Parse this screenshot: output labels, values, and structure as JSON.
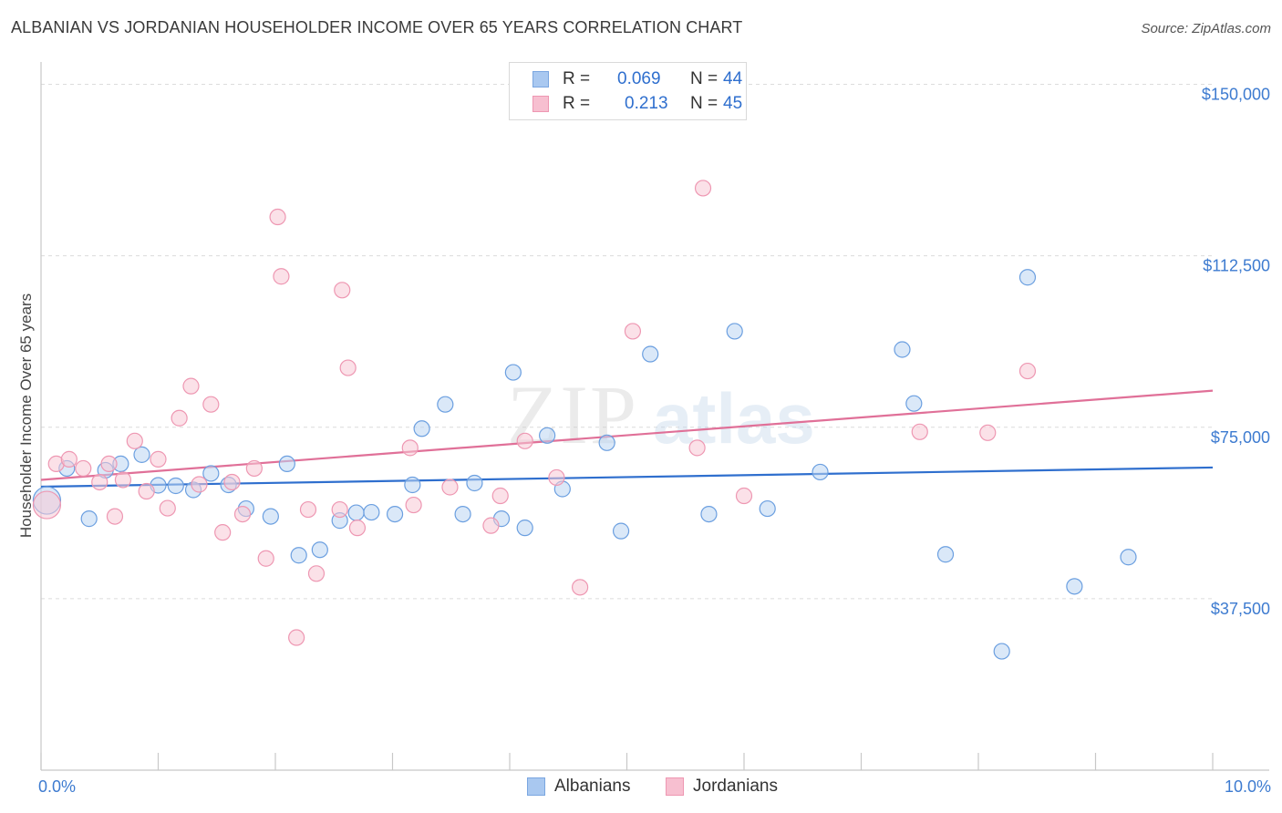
{
  "title": "ALBANIAN VS JORDANIAN HOUSEHOLDER INCOME OVER 65 YEARS CORRELATION CHART",
  "source": "Source: ZipAtlas.com",
  "watermark": {
    "zip": "ZIP",
    "atlas": "atlas"
  },
  "legend": {
    "rows": [
      {
        "r_label": "R =",
        "r_value": "0.069",
        "n_label": "N =",
        "n_value": "44",
        "color": "#a9c8f0",
        "border": "#7aa6e0"
      },
      {
        "r_label": "R =",
        "r_value": "0.213",
        "n_label": "N =",
        "n_value": "45",
        "color": "#f7bfd0",
        "border": "#ee97b2"
      }
    ]
  },
  "bottom_legend": [
    "Albanians",
    "Jordanians"
  ],
  "chart_data": {
    "type": "scatter",
    "title": "ALBANIAN VS JORDANIAN HOUSEHOLDER INCOME OVER 65 YEARS CORRELATION CHART",
    "xlabel": "",
    "ylabel": "Householder Income Over 65 years",
    "xlim": [
      0,
      10
    ],
    "ylim": [
      0,
      153500
    ],
    "x_tick_labels": [
      "0.0%",
      "10.0%"
    ],
    "y_ticks": [
      37500,
      75000,
      112500,
      150000
    ],
    "y_tick_labels": [
      "$37,500",
      "$75,000",
      "$112,500",
      "$150,000"
    ],
    "grid": true,
    "series": [
      {
        "name": "Albanians",
        "color": "#6b9fe0",
        "fill": "#bcd5f3",
        "trend": {
          "x": [
            0,
            10
          ],
          "y": [
            62000,
            66200
          ],
          "color": "#2f6fce"
        },
        "points": [
          [
            0.05,
            59000,
            3
          ],
          [
            0.22,
            66000,
            1
          ],
          [
            0.41,
            55000,
            1
          ],
          [
            0.55,
            65600,
            1
          ],
          [
            0.68,
            67000,
            1
          ],
          [
            0.86,
            69000,
            1
          ],
          [
            1.0,
            62300,
            1
          ],
          [
            1.15,
            62200,
            1
          ],
          [
            1.3,
            61300,
            1
          ],
          [
            1.45,
            64900,
            1
          ],
          [
            1.6,
            62400,
            1
          ],
          [
            1.75,
            57200,
            1
          ],
          [
            1.96,
            55500,
            1
          ],
          [
            2.1,
            67000,
            1
          ],
          [
            2.2,
            47000,
            1
          ],
          [
            2.38,
            48200,
            1
          ],
          [
            2.55,
            54600,
            1
          ],
          [
            2.69,
            56300,
            1
          ],
          [
            2.82,
            56400,
            1
          ],
          [
            3.02,
            56000,
            1
          ],
          [
            3.17,
            62400,
            1
          ],
          [
            3.25,
            74700,
            1
          ],
          [
            3.45,
            80000,
            1
          ],
          [
            3.6,
            56000,
            1
          ],
          [
            3.7,
            62800,
            1
          ],
          [
            3.93,
            55000,
            1
          ],
          [
            4.03,
            87000,
            1
          ],
          [
            4.13,
            53000,
            1
          ],
          [
            4.32,
            73200,
            1
          ],
          [
            4.45,
            61500,
            1
          ],
          [
            4.83,
            71600,
            1
          ],
          [
            4.95,
            52300,
            1
          ],
          [
            5.2,
            91000,
            1
          ],
          [
            5.7,
            56000,
            1
          ],
          [
            5.92,
            96000,
            1
          ],
          [
            6.2,
            57200,
            1
          ],
          [
            6.65,
            65200,
            1
          ],
          [
            7.35,
            92000,
            1
          ],
          [
            7.45,
            80200,
            1
          ],
          [
            7.72,
            47200,
            1
          ],
          [
            8.2,
            26000,
            1
          ],
          [
            8.42,
            107800,
            1
          ],
          [
            8.82,
            40200,
            1
          ],
          [
            9.28,
            46600,
            1
          ]
        ]
      },
      {
        "name": "Jordanians",
        "color": "#ee97b2",
        "fill": "#f8c8d6",
        "trend": {
          "x": [
            0,
            10
          ],
          "y": [
            63500,
            83000
          ],
          "color": "#e07098"
        },
        "points": [
          [
            0.05,
            58000,
            3
          ],
          [
            0.13,
            67000,
            1
          ],
          [
            0.24,
            68000,
            1
          ],
          [
            0.36,
            66000,
            1
          ],
          [
            0.5,
            63000,
            1
          ],
          [
            0.58,
            67000,
            1
          ],
          [
            0.63,
            55500,
            1
          ],
          [
            0.7,
            63500,
            1
          ],
          [
            0.8,
            72000,
            1
          ],
          [
            0.9,
            61000,
            1
          ],
          [
            1.0,
            68000,
            1
          ],
          [
            1.08,
            57300,
            1
          ],
          [
            1.18,
            77000,
            1
          ],
          [
            1.28,
            84000,
            1
          ],
          [
            1.35,
            62500,
            1
          ],
          [
            1.45,
            80000,
            1
          ],
          [
            1.55,
            52000,
            1
          ],
          [
            1.63,
            63000,
            1
          ],
          [
            1.72,
            56000,
            1
          ],
          [
            1.82,
            66000,
            1
          ],
          [
            1.92,
            46300,
            1
          ],
          [
            2.02,
            121000,
            1
          ],
          [
            2.05,
            108000,
            1
          ],
          [
            2.18,
            29000,
            1
          ],
          [
            2.28,
            57000,
            1
          ],
          [
            2.35,
            43000,
            1
          ],
          [
            2.55,
            57000,
            1
          ],
          [
            2.57,
            105000,
            1
          ],
          [
            2.62,
            88000,
            1
          ],
          [
            2.7,
            53000,
            1
          ],
          [
            3.15,
            70500,
            1
          ],
          [
            3.18,
            58000,
            1
          ],
          [
            3.49,
            61900,
            1
          ],
          [
            3.84,
            53500,
            1
          ],
          [
            3.92,
            60000,
            1
          ],
          [
            4.13,
            72000,
            1
          ],
          [
            4.4,
            64000,
            1
          ],
          [
            4.6,
            40000,
            1
          ],
          [
            5.05,
            96000,
            1
          ],
          [
            5.6,
            70500,
            1
          ],
          [
            5.65,
            127300,
            1
          ],
          [
            6.0,
            60000,
            1
          ],
          [
            7.5,
            74000,
            1
          ],
          [
            8.08,
            73800,
            1
          ],
          [
            8.42,
            87300,
            1
          ]
        ]
      }
    ]
  }
}
